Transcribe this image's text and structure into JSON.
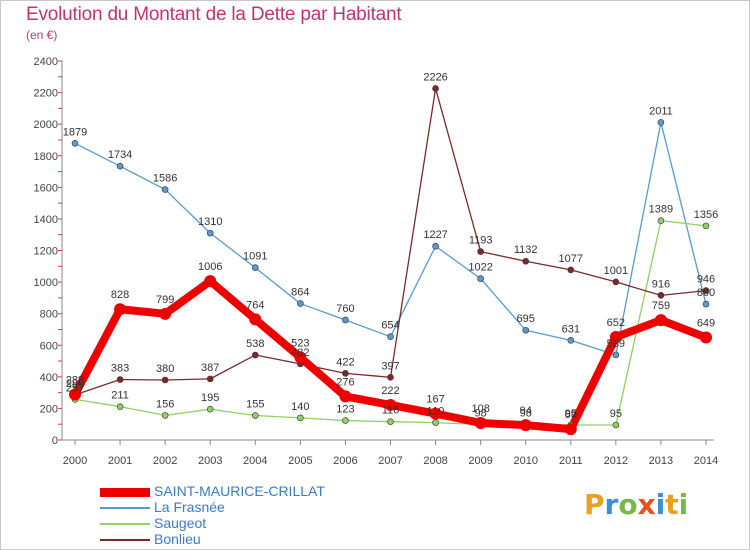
{
  "title": "Evolution du Montant de la Dette par Habitant",
  "unit": "(en €)",
  "logo": {
    "text": "Proxiti",
    "letters": [
      "P",
      "r",
      "o",
      "x",
      "i",
      "t",
      "i"
    ],
    "colors": [
      "#e8a020",
      "#3a8fd8",
      "#7ab648",
      "#e85020",
      "#3a8fd8",
      "#e8a020",
      "#7ab648"
    ]
  },
  "chart_data": {
    "type": "line",
    "title": "Evolution du Montant de la Dette par Habitant",
    "ylabel": "(en €)",
    "xlabel": "",
    "x": [
      "2000",
      "2001",
      "2002",
      "2003",
      "2004",
      "2005",
      "2006",
      "2007",
      "2008",
      "2009",
      "2010",
      "2011",
      "2012",
      "2013",
      "2014"
    ],
    "ylim": [
      0,
      2400
    ],
    "yticks": [
      0,
      200,
      400,
      600,
      800,
      1000,
      1200,
      1400,
      1600,
      1800,
      2000,
      2200,
      2400
    ],
    "grid": false,
    "legend_position": "bottom-left",
    "series": [
      {
        "name": "SAINT-MAURICE-CRILLAT",
        "color": "#ee0000",
        "values": [
          288,
          828,
          799,
          1006,
          764,
          523,
          276,
          222,
          167,
          108,
          94,
          69,
          652,
          759,
          649
        ]
      },
      {
        "name": "La Frasnée",
        "color": "#5a9ad0",
        "values": [
          1879,
          1734,
          1586,
          1310,
          1091,
          864,
          760,
          654,
          1227,
          1022,
          695,
          631,
          539,
          2011,
          860
        ]
      },
      {
        "name": "Saugeot",
        "color": "#8fd060",
        "values": [
          257,
          211,
          156,
          195,
          155,
          140,
          123,
          116,
          110,
          98,
          98,
          95,
          95,
          1389,
          1356
        ]
      },
      {
        "name": "Bonlieu",
        "color": "#7a2a2a",
        "values": [
          286,
          383,
          380,
          387,
          538,
          482,
          422,
          397,
          2226,
          1193,
          1132,
          1077,
          1001,
          916,
          946
        ]
      }
    ]
  }
}
